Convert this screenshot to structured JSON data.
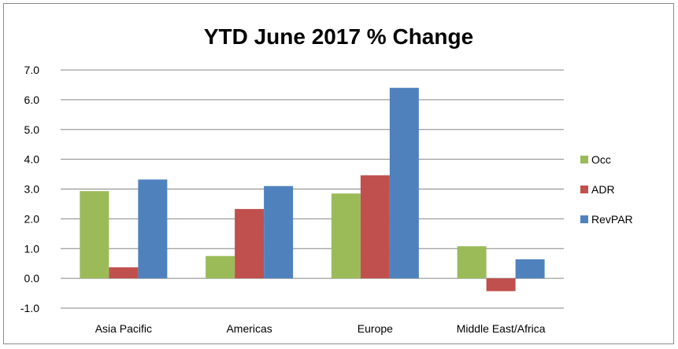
{
  "chart_data": {
    "type": "bar",
    "title": "YTD June 2017 % Change",
    "xlabel": "",
    "ylabel": "",
    "categories": [
      "Asia Pacific",
      "Americas",
      "Europe",
      "Middle East/Africa"
    ],
    "series": [
      {
        "name": "Occ",
        "values": [
          2.93,
          0.75,
          2.85,
          1.08
        ],
        "color": "#9bbb59"
      },
      {
        "name": "ADR",
        "values": [
          0.37,
          2.33,
          3.46,
          -0.43
        ],
        "color": "#c0504d"
      },
      {
        "name": "RevPAR",
        "values": [
          3.32,
          3.1,
          6.4,
          0.64
        ],
        "color": "#4f81bd"
      }
    ],
    "ylim": [
      -1.0,
      7.0
    ],
    "yticks": [
      "-1.0",
      "0.0",
      "1.0",
      "2.0",
      "3.0",
      "4.0",
      "5.0",
      "6.0",
      "7.0"
    ],
    "grid": true,
    "legend_position": "right"
  }
}
